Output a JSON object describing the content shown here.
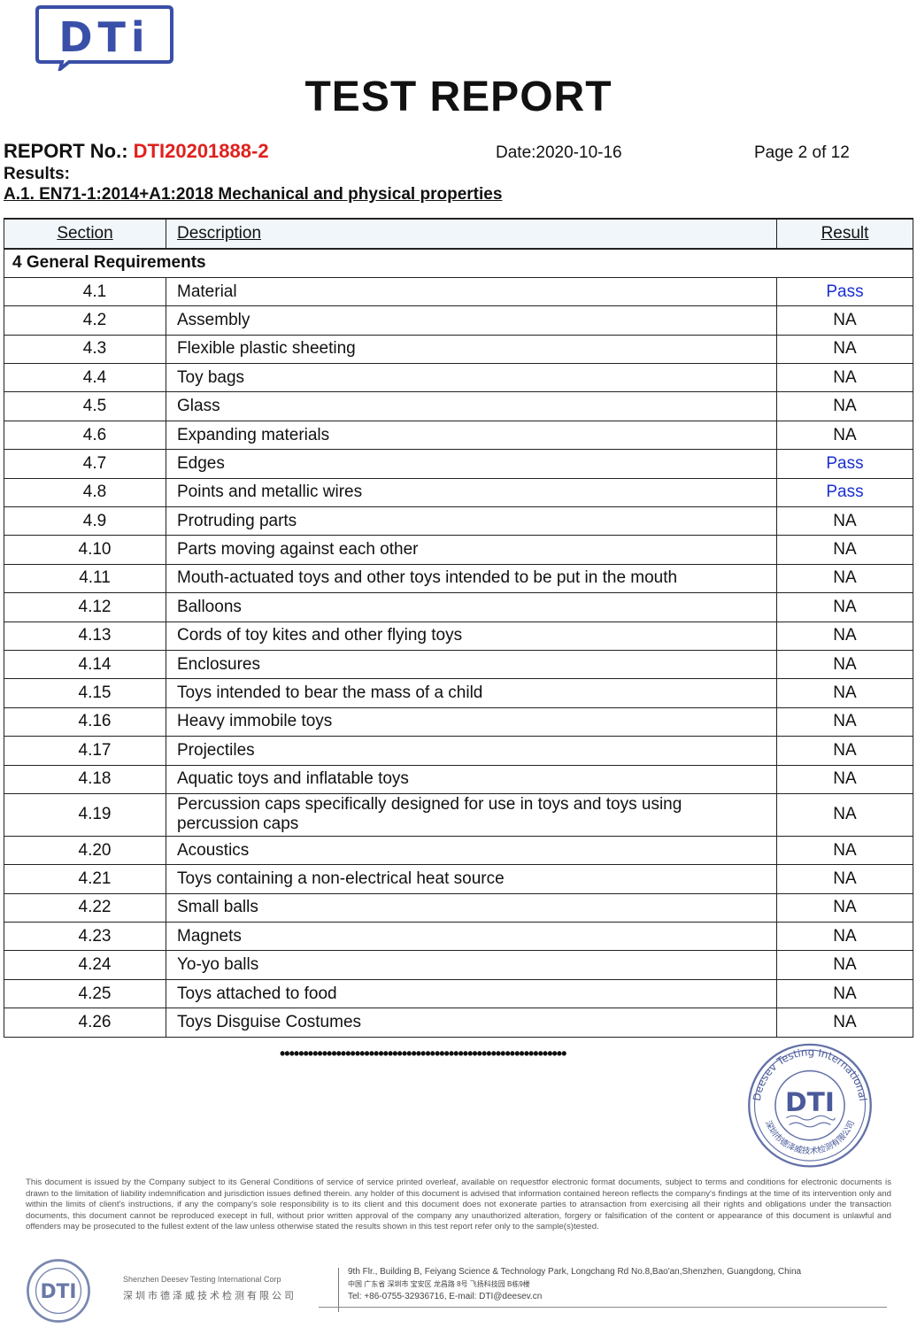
{
  "header": {
    "logo_text": "DTi",
    "title": "TEST REPORT",
    "report_no_label": "REPORT No.: ",
    "report_no": "DTI20201888-2",
    "date": "Date:2020-10-16",
    "page": "Page 2 of 12",
    "results_label": "Results:",
    "subtitle": "A.1. EN71-1:2014+A1:2018 Mechanical and physical properties"
  },
  "table": {
    "headers": {
      "section": "Section ",
      "description": "Description ",
      "result": "Result "
    },
    "group": "4 General Requirements",
    "rows": [
      {
        "section": "4.1",
        "description": "Material",
        "result": "Pass"
      },
      {
        "section": "4.2",
        "description": "Assembly",
        "result": "NA"
      },
      {
        "section": "4.3",
        "description": "Flexible plastic sheeting",
        "result": "NA"
      },
      {
        "section": "4.4",
        "description": "Toy bags",
        "result": "NA"
      },
      {
        "section": "4.5",
        "description": "Glass",
        "result": "NA"
      },
      {
        "section": "4.6",
        "description": "Expanding materials",
        "result": "NA"
      },
      {
        "section": "4.7",
        "description": "Edges",
        "result": "Pass"
      },
      {
        "section": "4.8",
        "description": "Points and metallic wires",
        "result": "Pass"
      },
      {
        "section": "4.9",
        "description": "Protruding parts",
        "result": "NA"
      },
      {
        "section": "4.10",
        "description": "Parts moving against each other",
        "result": "NA"
      },
      {
        "section": "4.11",
        "description": "Mouth-actuated toys and other toys intended to be put in the mouth",
        "result": "NA"
      },
      {
        "section": "4.12",
        "description": "Balloons",
        "result": "NA"
      },
      {
        "section": "4.13",
        "description": "Cords of toy kites and other flying toys",
        "result": "NA"
      },
      {
        "section": "4.14",
        "description": "Enclosures",
        "result": "NA"
      },
      {
        "section": "4.15",
        "description": "Toys intended to bear the mass of a child",
        "result": "NA"
      },
      {
        "section": "4.16",
        "description": "Heavy immobile toys",
        "result": "NA"
      },
      {
        "section": "4.17",
        "description": "Projectiles",
        "result": "NA"
      },
      {
        "section": "4.18",
        "description": "Aquatic toys and inflatable toys",
        "result": "NA"
      },
      {
        "section": "4.19",
        "description": "Percussion caps specifically designed for use in toys and toys using percussion caps",
        "result": "NA"
      },
      {
        "section": "4.20",
        "description": "Acoustics",
        "result": "NA"
      },
      {
        "section": "4.21",
        "description": "Toys containing a non-electrical heat source",
        "result": "NA"
      },
      {
        "section": "4.22",
        "description": "Small balls",
        "result": "NA"
      },
      {
        "section": "4.23",
        "description": "Magnets",
        "result": "NA"
      },
      {
        "section": "4.24",
        "description": "Yo-yo balls",
        "result": "NA"
      },
      {
        "section": "4.25",
        "description": "Toys attached to food",
        "result": "NA"
      },
      {
        "section": "4.26",
        "description": "Toys Disguise Costumes",
        "result": "NA"
      }
    ]
  },
  "end_marker": "•••••••••••••••••••••••••••••••••••••••••••••••••••••••••••••",
  "stamp": {
    "outer_text": "Deesev Testing International",
    "inner_text": "DTI",
    "chinese_text": "深圳市德泽威技术检测有限公司"
  },
  "footer": {
    "disclaimer": "This document is issued by the Company subject to its General Conditions of service of service printed overleaf, available on requestfor electronic format documents, subject to terms and conditions for electronic documents is drawn to the limitation of liability indemnification and jurisdiction issues defined therein. any holder of this document is advised that information contained hereon reflects the company's findings at the time of its intervention only and within the limits of client's instructions, if any the company's sole responsibility is to its client and this document does not exonerate parties to atransaction from exercising all their rights and obligations under the transaction documents, this document cannot be reproduced execept in full, without prior written approval of the company any unauthorized alteration, forgery or falsification of the content or appearance of this document is unlawful and offenders may be prosecuted to the fullest extent of the law unless otherwise stated the results shown in this test report refer only to the sample(s)tested.",
    "corp_en": "Shenzhen Deesev Testing International Corp",
    "corp_cn": "深圳市德泽威技术检测有限公司",
    "address_en": "9th Flr., Building B, Feiyang Science & Technology Park, Longchang Rd No.8,Bao'an,Shenzhen, Guangdong, China",
    "address_cn": "中国 广东省 深圳市 宝安区 龙昌路 8号 飞扬科技园 B栋9楼",
    "contact": "Tel: +86-0755-32936716,  E-mail: DTI@deesev.cn"
  },
  "colors": {
    "report_no": "#e0201c",
    "pass": "#1a2fd0",
    "logo": "#3a4fa8",
    "stamp": "#4a5a9a"
  }
}
